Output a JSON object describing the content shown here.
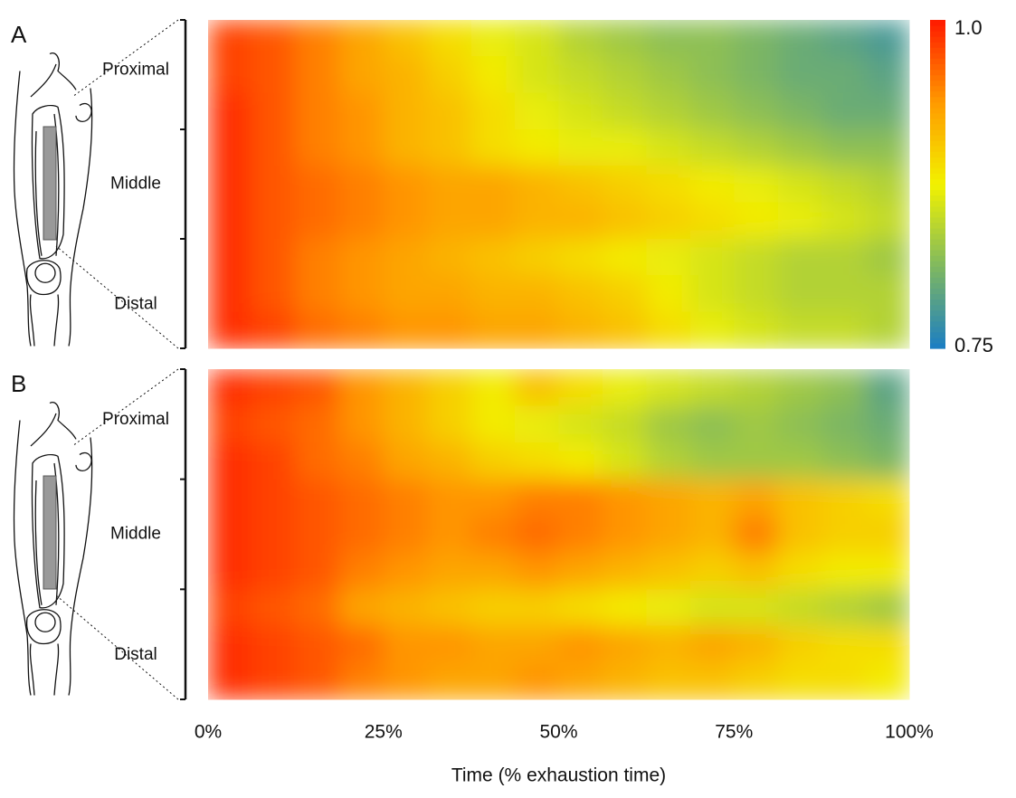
{
  "chart_data": [
    {
      "type": "heatmap",
      "panel": "A",
      "categories": [
        "Proximal",
        "Middle",
        "Distal"
      ],
      "xlim": [
        0,
        100
      ],
      "clim": [
        0.75,
        1
      ],
      "colorscale": [
        "#1a7dc4",
        "#7fb860",
        "#f2f200",
        "#ff9a00",
        "#ff1a00"
      ],
      "colorbar_ticks": [
        {
          "value": 1,
          "label": "1.0"
        },
        0.75
      ],
      "z": [
        [
          0.98,
          0.97,
          0.95,
          0.93,
          0.91,
          0.89,
          0.87,
          0.86,
          0.84,
          0.83,
          0.82,
          0.82,
          0.81,
          0.8,
          0.79,
          0.78
        ],
        [
          0.98,
          0.97,
          0.95,
          0.93,
          0.92,
          0.9,
          0.88,
          0.86,
          0.85,
          0.84,
          0.83,
          0.82,
          0.81,
          0.8,
          0.8,
          0.79
        ],
        [
          0.99,
          0.97,
          0.95,
          0.94,
          0.92,
          0.91,
          0.89,
          0.87,
          0.86,
          0.85,
          0.84,
          0.83,
          0.82,
          0.81,
          0.8,
          0.8
        ],
        [
          0.99,
          0.97,
          0.95,
          0.94,
          0.92,
          0.91,
          0.89,
          0.88,
          0.87,
          0.87,
          0.86,
          0.85,
          0.84,
          0.83,
          0.82,
          0.82
        ],
        [
          0.99,
          0.97,
          0.96,
          0.95,
          0.94,
          0.93,
          0.93,
          0.92,
          0.91,
          0.9,
          0.89,
          0.88,
          0.87,
          0.86,
          0.85,
          0.84
        ],
        [
          0.99,
          0.97,
          0.96,
          0.95,
          0.94,
          0.93,
          0.93,
          0.92,
          0.92,
          0.91,
          0.9,
          0.89,
          0.88,
          0.87,
          0.86,
          0.85
        ],
        [
          0.99,
          0.97,
          0.95,
          0.94,
          0.93,
          0.92,
          0.91,
          0.9,
          0.89,
          0.88,
          0.87,
          0.86,
          0.85,
          0.84,
          0.84,
          0.83
        ],
        [
          0.99,
          0.97,
          0.95,
          0.94,
          0.93,
          0.93,
          0.92,
          0.92,
          0.91,
          0.9,
          0.88,
          0.86,
          0.85,
          0.84,
          0.84,
          0.84
        ],
        [
          0.99,
          0.98,
          0.96,
          0.95,
          0.94,
          0.94,
          0.93,
          0.93,
          0.92,
          0.91,
          0.89,
          0.87,
          0.86,
          0.85,
          0.85,
          0.84
        ]
      ]
    },
    {
      "type": "heatmap",
      "panel": "B",
      "categories": [
        "Proximal",
        "Middle",
        "Distal"
      ],
      "xlim": [
        0,
        100
      ],
      "xticks": [
        {
          "value": 0,
          "label": "0%"
        },
        {
          "value": 25,
          "label": "25%"
        },
        {
          "value": 50,
          "label": "50%"
        },
        {
          "value": 75,
          "label": "75%"
        },
        {
          "value": 100,
          "label": "100%"
        }
      ],
      "xlabel": "Time (% exhaustion time)",
      "clim": [
        0.75,
        1
      ],
      "colorscale": [
        "#1a7dc4",
        "#7fb860",
        "#f2f200",
        "#ff9a00",
        "#ff1a00"
      ],
      "z": [
        [
          0.99,
          0.98,
          0.97,
          0.94,
          0.92,
          0.9,
          0.88,
          0.91,
          0.89,
          0.87,
          0.86,
          0.85,
          0.84,
          0.83,
          0.82,
          0.79
        ],
        [
          0.98,
          0.97,
          0.96,
          0.94,
          0.92,
          0.9,
          0.88,
          0.87,
          0.86,
          0.85,
          0.83,
          0.82,
          0.83,
          0.82,
          0.81,
          0.8
        ],
        [
          0.99,
          0.98,
          0.96,
          0.95,
          0.93,
          0.92,
          0.9,
          0.89,
          0.88,
          0.86,
          0.84,
          0.83,
          0.83,
          0.83,
          0.82,
          0.81
        ],
        [
          0.99,
          0.98,
          0.97,
          0.96,
          0.95,
          0.94,
          0.94,
          0.95,
          0.95,
          0.94,
          0.93,
          0.92,
          0.93,
          0.91,
          0.9,
          0.89
        ],
        [
          0.99,
          0.98,
          0.97,
          0.96,
          0.95,
          0.94,
          0.95,
          0.96,
          0.95,
          0.94,
          0.93,
          0.92,
          0.95,
          0.91,
          0.9,
          0.9
        ],
        [
          0.99,
          0.98,
          0.97,
          0.95,
          0.94,
          0.93,
          0.93,
          0.94,
          0.93,
          0.92,
          0.91,
          0.9,
          0.91,
          0.89,
          0.88,
          0.88
        ],
        [
          0.98,
          0.97,
          0.96,
          0.93,
          0.92,
          0.91,
          0.9,
          0.9,
          0.89,
          0.88,
          0.87,
          0.86,
          0.86,
          0.85,
          0.84,
          0.83
        ],
        [
          0.99,
          0.98,
          0.97,
          0.96,
          0.94,
          0.94,
          0.93,
          0.93,
          0.94,
          0.93,
          0.92,
          0.93,
          0.92,
          0.9,
          0.89,
          0.89
        ],
        [
          0.99,
          0.98,
          0.97,
          0.95,
          0.94,
          0.93,
          0.93,
          0.94,
          0.93,
          0.92,
          0.91,
          0.91,
          0.9,
          0.89,
          0.89,
          0.88
        ]
      ]
    }
  ]
}
